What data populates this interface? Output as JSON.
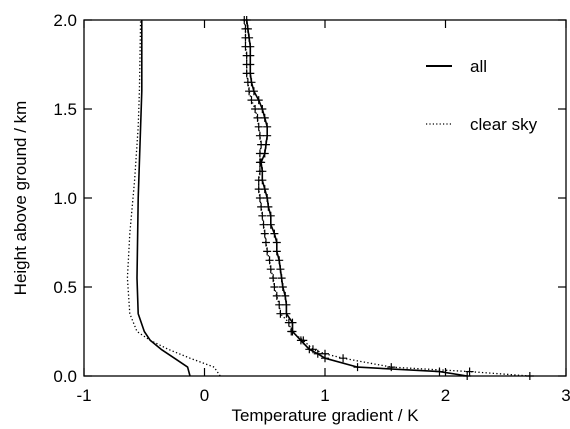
{
  "chart_data": {
    "type": "line",
    "title": "",
    "xlabel": "Temperature gradient / K",
    "ylabel": "Height above ground / km",
    "xlim": [
      -1,
      3
    ],
    "ylim": [
      0.0,
      2.0
    ],
    "xticks": [
      "-1",
      "0",
      "1",
      "2",
      "3"
    ],
    "yticks": [
      "0.0",
      "0.5",
      "1.0",
      "1.5",
      "2.0"
    ],
    "grid": false,
    "legend_position": "top-right",
    "legend": [
      {
        "label": "all",
        "style": "solid"
      },
      {
        "label": "clear sky",
        "style": "dotted"
      }
    ],
    "series": [
      {
        "name": "all",
        "style": "solid",
        "color": "#000000",
        "points": [
          [
            -0.12,
            0.0
          ],
          [
            -0.14,
            0.05
          ],
          [
            -0.25,
            0.1
          ],
          [
            -0.36,
            0.15
          ],
          [
            -0.45,
            0.2
          ],
          [
            -0.5,
            0.25
          ],
          [
            -0.55,
            0.35
          ],
          [
            -0.56,
            0.55
          ],
          [
            -0.55,
            1.0
          ],
          [
            -0.53,
            1.4
          ],
          [
            -0.52,
            1.6
          ],
          [
            -0.52,
            1.8
          ],
          [
            -0.52,
            2.0
          ]
        ]
      },
      {
        "name": "clear sky",
        "style": "dotted",
        "color": "#000000",
        "points": [
          [
            0.13,
            0.0
          ],
          [
            0.08,
            0.05
          ],
          [
            -0.12,
            0.1
          ],
          [
            -0.3,
            0.15
          ],
          [
            -0.45,
            0.2
          ],
          [
            -0.56,
            0.25
          ],
          [
            -0.62,
            0.35
          ],
          [
            -0.64,
            0.55
          ],
          [
            -0.62,
            0.8
          ],
          [
            -0.58,
            1.1
          ],
          [
            -0.55,
            1.4
          ],
          [
            -0.54,
            1.6
          ],
          [
            -0.53,
            2.0
          ]
        ]
      },
      {
        "name": "all",
        "style": "solid",
        "markers": "plus",
        "color": "#000000",
        "points": [
          [
            2.18,
            0.0
          ],
          [
            1.95,
            0.025
          ],
          [
            1.27,
            0.05
          ],
          [
            1.0,
            0.1
          ],
          [
            0.94,
            0.125
          ],
          [
            0.87,
            0.15
          ],
          [
            0.8,
            0.2
          ],
          [
            0.73,
            0.25
          ],
          [
            0.73,
            0.3
          ],
          [
            0.68,
            0.35
          ],
          [
            0.68,
            0.4
          ],
          [
            0.67,
            0.45
          ],
          [
            0.65,
            0.5
          ],
          [
            0.64,
            0.55
          ],
          [
            0.63,
            0.6
          ],
          [
            0.62,
            0.65
          ],
          [
            0.6,
            0.7
          ],
          [
            0.6,
            0.75
          ],
          [
            0.58,
            0.8
          ],
          [
            0.55,
            0.85
          ],
          [
            0.55,
            0.9
          ],
          [
            0.53,
            0.95
          ],
          [
            0.52,
            1.0
          ],
          [
            0.5,
            1.05
          ],
          [
            0.48,
            1.1
          ],
          [
            0.48,
            1.15
          ],
          [
            0.47,
            1.2
          ],
          [
            0.5,
            1.25
          ],
          [
            0.51,
            1.3
          ],
          [
            0.52,
            1.35
          ],
          [
            0.52,
            1.4
          ],
          [
            0.5,
            1.45
          ],
          [
            0.48,
            1.5
          ],
          [
            0.45,
            1.55
          ],
          [
            0.41,
            1.6
          ],
          [
            0.39,
            1.65
          ],
          [
            0.38,
            1.7
          ],
          [
            0.38,
            1.75
          ],
          [
            0.38,
            1.8
          ],
          [
            0.38,
            1.85
          ],
          [
            0.37,
            1.9
          ],
          [
            0.36,
            1.95
          ],
          [
            0.35,
            2.0
          ]
        ]
      },
      {
        "name": "clear sky",
        "style": "dotted",
        "markers": "plus",
        "color": "#000000",
        "points": [
          [
            2.7,
            0.0
          ],
          [
            2.2,
            0.025
          ],
          [
            1.55,
            0.05
          ],
          [
            1.15,
            0.1
          ],
          [
            1.0,
            0.125
          ],
          [
            0.9,
            0.15
          ],
          [
            0.82,
            0.2
          ],
          [
            0.72,
            0.25
          ],
          [
            0.7,
            0.3
          ],
          [
            0.63,
            0.35
          ],
          [
            0.62,
            0.4
          ],
          [
            0.6,
            0.45
          ],
          [
            0.58,
            0.5
          ],
          [
            0.57,
            0.55
          ],
          [
            0.55,
            0.6
          ],
          [
            0.54,
            0.65
          ],
          [
            0.52,
            0.7
          ],
          [
            0.51,
            0.75
          ],
          [
            0.5,
            0.8
          ],
          [
            0.49,
            0.85
          ],
          [
            0.48,
            0.9
          ],
          [
            0.47,
            0.95
          ],
          [
            0.46,
            1.0
          ],
          [
            0.45,
            1.05
          ],
          [
            0.45,
            1.1
          ],
          [
            0.46,
            1.15
          ],
          [
            0.46,
            1.2
          ],
          [
            0.46,
            1.25
          ],
          [
            0.47,
            1.3
          ],
          [
            0.46,
            1.35
          ],
          [
            0.45,
            1.4
          ],
          [
            0.44,
            1.45
          ],
          [
            0.42,
            1.5
          ],
          [
            0.39,
            1.55
          ],
          [
            0.37,
            1.6
          ],
          [
            0.36,
            1.65
          ],
          [
            0.35,
            1.7
          ],
          [
            0.35,
            1.75
          ],
          [
            0.35,
            1.8
          ],
          [
            0.34,
            1.85
          ],
          [
            0.34,
            1.9
          ],
          [
            0.34,
            1.95
          ],
          [
            0.33,
            2.0
          ]
        ]
      }
    ]
  }
}
